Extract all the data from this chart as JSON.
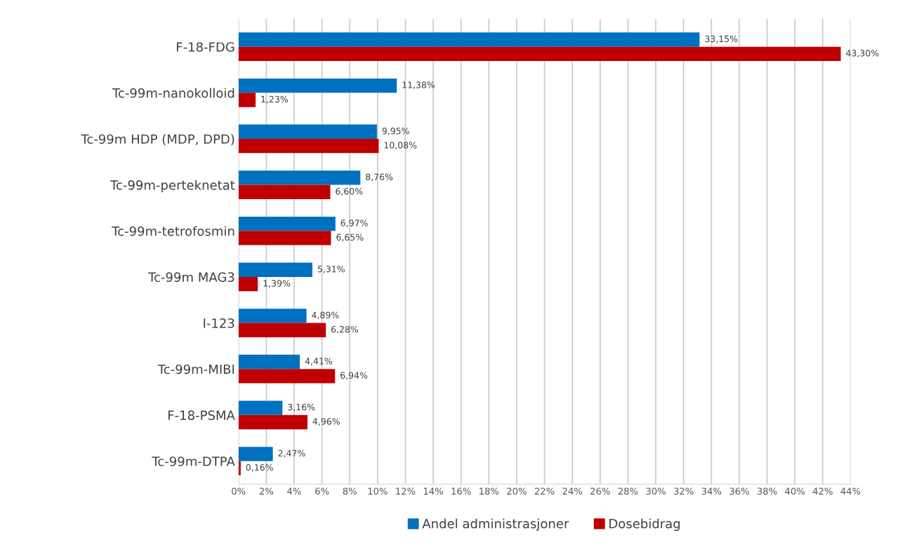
{
  "chart_data": {
    "type": "bar",
    "orientation": "horizontal",
    "categories": [
      "F-18-FDG",
      "Tc-99m-nanokolloid",
      "Tc-99m HDP (MDP, DPD)",
      "Tc-99m-perteknetat",
      "Tc-99m-tetrofosmin",
      "Tc-99m MAG3",
      "I-123",
      "Tc-99m-MIBI",
      "F-18-PSMA",
      "Tc-99m-DTPA"
    ],
    "series": [
      {
        "name": "Andel administrasjoner",
        "color": "#0070c0",
        "values": [
          33.15,
          11.38,
          9.95,
          8.76,
          6.97,
          5.31,
          4.89,
          4.41,
          3.16,
          2.47
        ],
        "value_labels": [
          "33,15%",
          "11,38%",
          "9,95%",
          "8,76%",
          "6,97%",
          "5,31%",
          "4,89%",
          "4,41%",
          "3,16%",
          "2,47%"
        ]
      },
      {
        "name": "Dosebidrag",
        "color": "#c00000",
        "values": [
          43.3,
          1.23,
          10.08,
          6.6,
          6.65,
          1.39,
          6.28,
          6.94,
          4.96,
          0.16
        ],
        "value_labels": [
          "43,30%",
          "1,23%",
          "10,08%",
          "6,60%",
          "6,65%",
          "1,39%",
          "6,28%",
          "6,94%",
          "4,96%",
          "0,16%"
        ]
      }
    ],
    "xlim": [
      0,
      44
    ],
    "xticks": [
      {
        "value": 0,
        "label": "0%"
      },
      {
        "value": 2,
        "label": "2%"
      },
      {
        "value": 4,
        "label": "4%"
      },
      {
        "value": 6,
        "label": "6%"
      },
      {
        "value": 8,
        "label": "8%"
      },
      {
        "value": 10,
        "label": "10%"
      },
      {
        "value": 12,
        "label": "12%"
      },
      {
        "value": 14,
        "label": "14%"
      },
      {
        "value": 16,
        "label": "16%"
      },
      {
        "value": 18,
        "label": "18%"
      },
      {
        "value": 20,
        "label": "20%"
      },
      {
        "value": 22,
        "label": "22%"
      },
      {
        "value": 24,
        "label": "24%"
      },
      {
        "value": 26,
        "label": "26%"
      },
      {
        "value": 28,
        "label": "28%"
      },
      {
        "value": 30,
        "label": "30%"
      },
      {
        "value": 32,
        "label": "32%"
      },
      {
        "value": 34,
        "label": "34%"
      },
      {
        "value": 36,
        "label": "36%"
      },
      {
        "value": 38,
        "label": "38%"
      },
      {
        "value": 40,
        "label": "40%"
      },
      {
        "value": 42,
        "label": "42%"
      },
      {
        "value": 44,
        "label": "44%"
      }
    ],
    "grid": "x",
    "legend": "bottom"
  }
}
